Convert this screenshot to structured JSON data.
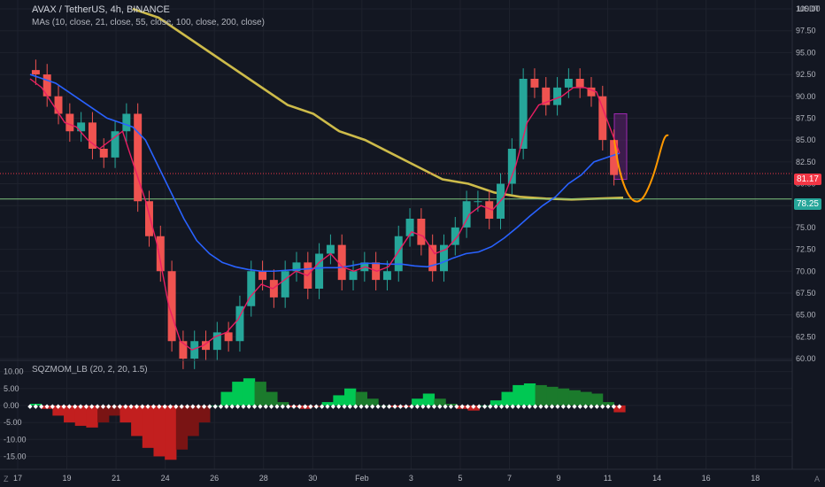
{
  "header": {
    "title": "AVAX / TetherUS, 4h, BINANCE",
    "ma_legend": "MAs (10, close, 21, close, 55, close, 100, close, 200, close)",
    "unit": "USDT"
  },
  "indicator": {
    "legend": "SQZMOM_LB (20, 2, 20, 1.5)"
  },
  "price_tags": {
    "current": "81.17",
    "level": "78.25"
  },
  "corner_labels": {
    "left": "Z",
    "right": "A"
  },
  "colors": {
    "bg": "#131722",
    "grid": "#1e222d",
    "up": "#26a69a",
    "down": "#ef5350",
    "ma_fast": "#e91e63",
    "ma_mid": "#2962ff",
    "ma_slow": "#cdbb4a",
    "projection": "#ff9800",
    "mom_green": "#00c853",
    "mom_darkgreen": "#1b7a2c",
    "mom_red": "#c21f1f",
    "mom_darkred": "#7a1414"
  },
  "chart_data": [
    {
      "type": "line",
      "name": "price",
      "ylim": [
        60,
        100
      ],
      "y_ticks": [
        "100.00",
        "97.50",
        "95.00",
        "92.50",
        "90.00",
        "87.50",
        "85.00",
        "82.50",
        "80.00",
        "77.50",
        "75.00",
        "72.50",
        "70.00",
        "67.50",
        "65.00",
        "62.50",
        "60.00"
      ],
      "x_ticks": [
        "17",
        "19",
        "21",
        "24",
        "26",
        "28",
        "30",
        "Feb",
        "3",
        "5",
        "7",
        "9",
        "11",
        "14",
        "16",
        "18"
      ],
      "close": [
        92.5,
        90,
        88,
        86,
        87,
        84,
        83,
        86,
        88,
        78,
        74,
        70,
        62,
        60,
        62,
        61,
        63,
        62,
        66,
        70,
        69,
        67,
        70,
        71,
        68,
        72,
        73,
        69,
        70,
        71,
        69,
        70,
        74,
        76,
        73,
        70,
        73,
        75,
        78,
        78,
        76,
        80,
        84,
        92,
        91,
        89,
        91,
        92,
        91,
        90,
        85,
        81
      ],
      "ma_fast": [
        92,
        91,
        89,
        87,
        86.5,
        85,
        84,
        85,
        86,
        82,
        78,
        73,
        66,
        62,
        61,
        61.5,
        62.5,
        63,
        64.5,
        67,
        68.5,
        68,
        69,
        70,
        69.5,
        71,
        72,
        70.5,
        70,
        70.5,
        70,
        70.5,
        72.5,
        74.5,
        74,
        72,
        72.5,
        74,
        76.5,
        77.5,
        77,
        78.5,
        82,
        87,
        89,
        89.5,
        90,
        91,
        91,
        90.5,
        87,
        83.5
      ],
      "ma_mid": [
        92.5,
        92,
        91.5,
        90.5,
        89.5,
        88.5,
        87.5,
        87,
        86.5,
        85,
        82,
        79,
        76,
        73.5,
        72,
        71,
        70.5,
        70.2,
        70,
        70,
        70.1,
        70.2,
        70.3,
        70.4,
        70.4,
        70.6,
        70.9,
        70.9,
        70.8,
        70.8,
        70.6,
        70.5,
        70.9,
        71.5,
        72,
        72.2,
        72.8,
        73.8,
        75,
        76.3,
        77.5,
        78.5,
        80,
        81,
        82.5,
        83,
        83.5
      ],
      "ma_slow": [
        100,
        99,
        97,
        95,
        93,
        91,
        89,
        88,
        86,
        85,
        83.5,
        82,
        80.5,
        80,
        79,
        78.5,
        78.3,
        78.2,
        78.3,
        78.4
      ],
      "levels": {
        "current": 81.17,
        "horizontal": 78.25
      }
    },
    {
      "type": "area",
      "name": "SQZMOM_LB",
      "ylim": [
        -17.5,
        12.5
      ],
      "y_ticks": [
        "10.00",
        "5.00",
        "0.00",
        "-5.00",
        "-10.00",
        "-15.00"
      ],
      "values": [
        0.5,
        -1,
        -3,
        -5,
        -6,
        -6.5,
        -5,
        -3,
        -5,
        -9,
        -12.5,
        -15,
        -16,
        -13,
        -9,
        -5,
        0,
        4,
        7,
        8,
        7,
        4,
        1,
        -0.5,
        -1,
        -0.5,
        1,
        3,
        5,
        4,
        2,
        0,
        -0.5,
        -0.5,
        2,
        3.5,
        2,
        0.5,
        -1,
        -1.5,
        0,
        1.5,
        4,
        6,
        6.5,
        6,
        5.5,
        5,
        4.5,
        4,
        3.5,
        1,
        -2
      ]
    }
  ]
}
